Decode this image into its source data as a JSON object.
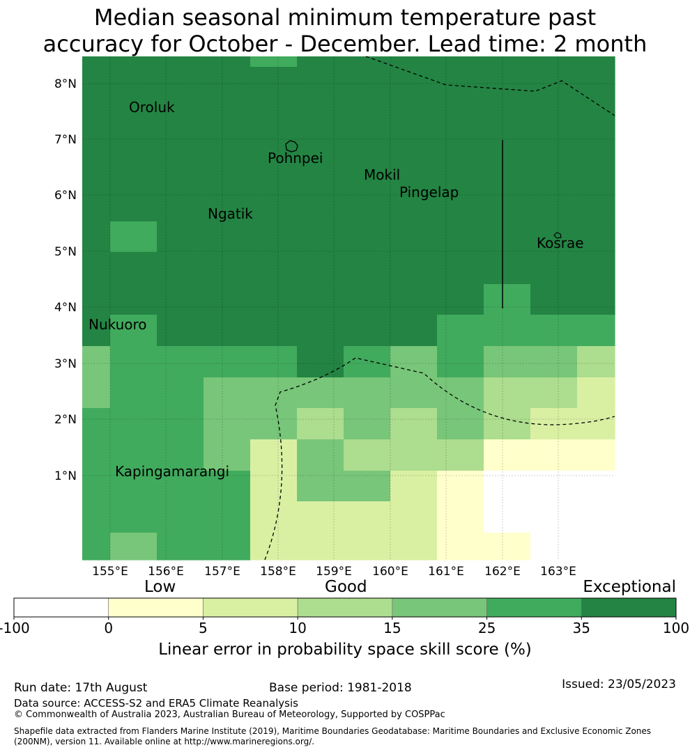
{
  "title": {
    "line1": "Median seasonal minimum temperature past",
    "line2": "accuracy for October - December. Lead time: 2 month"
  },
  "map": {
    "lon_ticks": [
      "155°E",
      "156°E",
      "157°E",
      "158°E",
      "159°E",
      "160°E",
      "161°E",
      "162°E",
      "163°E"
    ],
    "lat_ticks": [
      "8°N",
      "7°N",
      "6°N",
      "5°N",
      "4°N",
      "3°N",
      "2°N",
      "1°N"
    ],
    "places": [
      "Oroluk",
      "Pohnpei",
      "Mokil",
      "Pingelap",
      "Ngatik",
      "Kosrae",
      "Nukuoro",
      "Kapingamarangi"
    ]
  },
  "colorbar": {
    "boundaries": [
      "-100",
      "0",
      "5",
      "10",
      "15",
      "25",
      "35",
      "100"
    ],
    "colors": [
      "#ffffff",
      "#ffffcc",
      "#d9f0a3",
      "#addd8e",
      "#78c679",
      "#41ab5d",
      "#238443"
    ],
    "words": [
      "Low",
      "Good",
      "Exceptional"
    ],
    "label": "Linear error in probability space skill score (%)"
  },
  "footer": {
    "run_date": "Run date: 17th August",
    "base_period": "Base period: 1981-2018",
    "issued": "Issued: 23/05/2023",
    "data_source": "Data source: ACCESS-S2 and ERA5 Climate Reanalysis",
    "copyright": "© Commonwealth of Australia 2023, Australian Bureau of Meteorology, Supported by COSPPac",
    "shapefile": "Shapefile data extracted from Flanders Marine Institute (2019), Maritime Boundaries Geodatabase: Maritime Boundaries and Exclusive Economic Zones (200NM), version 11. Available online at http://www.marineregions.org/."
  }
}
